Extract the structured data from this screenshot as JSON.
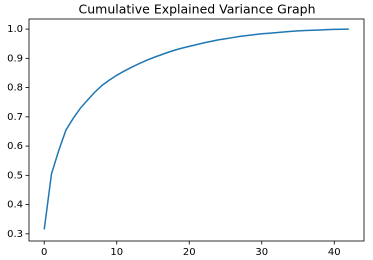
{
  "chart_data": {
    "type": "line",
    "title": "Cumulative Explained Variance Graph",
    "x": [
      0,
      1,
      2,
      3,
      4,
      5,
      6,
      7,
      8,
      9,
      10,
      11,
      12,
      13,
      14,
      15,
      16,
      17,
      18,
      19,
      20,
      21,
      22,
      23,
      24,
      25,
      26,
      27,
      28,
      29,
      30,
      31,
      32,
      33,
      34,
      35,
      36,
      37,
      38,
      39,
      40,
      41,
      42
    ],
    "values": [
      0.315,
      0.505,
      0.585,
      0.655,
      0.695,
      0.73,
      0.758,
      0.785,
      0.808,
      0.826,
      0.842,
      0.856,
      0.869,
      0.881,
      0.892,
      0.902,
      0.911,
      0.92,
      0.928,
      0.935,
      0.941,
      0.947,
      0.953,
      0.958,
      0.963,
      0.967,
      0.971,
      0.975,
      0.978,
      0.981,
      0.984,
      0.986,
      0.988,
      0.99,
      0.992,
      0.994,
      0.995,
      0.996,
      0.997,
      0.998,
      0.999,
      0.9995,
      1.0
    ],
    "color": "#1f77b4",
    "xlim": [
      -2.1,
      44.1
    ],
    "xticks": [
      0,
      10,
      20,
      30,
      40
    ],
    "ylim": [
      0.2755,
      1.0345
    ],
    "yticks": [
      0.3,
      0.4,
      0.5,
      0.6,
      0.7,
      0.8,
      0.9,
      {
        "value": 1,
        "label": "1.0"
      }
    ],
    "grid": false
  }
}
